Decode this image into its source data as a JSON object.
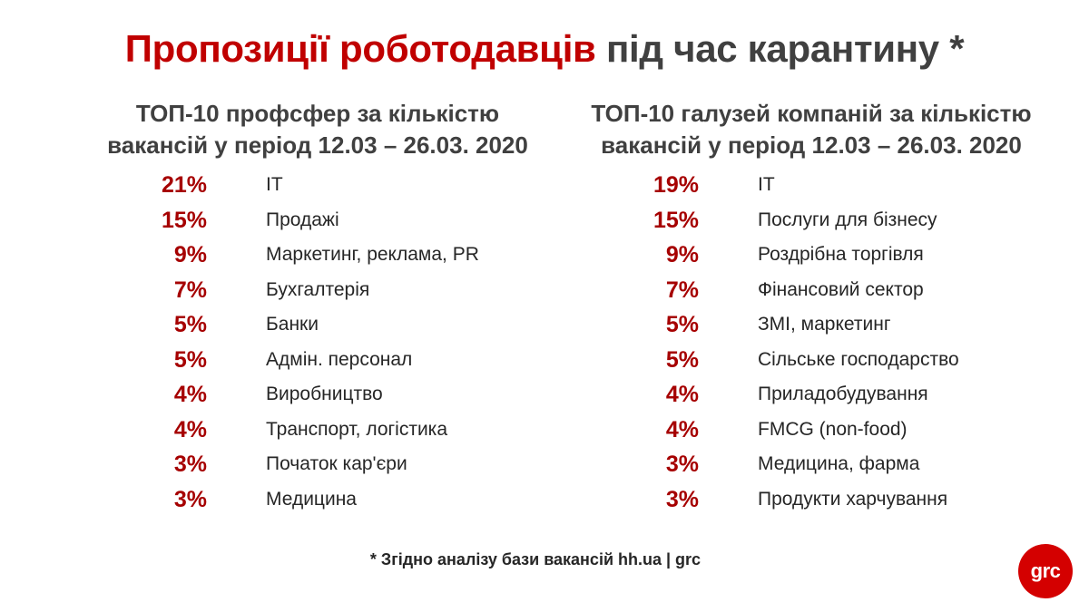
{
  "title": {
    "accent": "Пропозиції роботодавців",
    "rest": " під час карантину *"
  },
  "left_column": {
    "heading_line1": "ТОП-10 профсфер за кількістю",
    "heading_line2": "вакансій у період 12.03 – 26.03. 2020",
    "items": [
      {
        "pct": "21%",
        "label": "IT"
      },
      {
        "pct": "15%",
        "label": "Продажі"
      },
      {
        "pct": "9%",
        "label": "Маркетинг, реклама, PR"
      },
      {
        "pct": "7%",
        "label": "Бухгалтерія"
      },
      {
        "pct": "5%",
        "label": "Банки"
      },
      {
        "pct": "5%",
        "label": "Адмін. персонал"
      },
      {
        "pct": "4%",
        "label": "Виробництво"
      },
      {
        "pct": "4%",
        "label": "Транспорт, логістика"
      },
      {
        "pct": "3%",
        "label": "Початок кар'єри"
      },
      {
        "pct": "3%",
        "label": "Медицина"
      }
    ]
  },
  "right_column": {
    "heading_line1": "ТОП-10 галузей компаній за кількістю",
    "heading_line2": "вакансій у період 12.03 – 26.03. 2020",
    "items": [
      {
        "pct": "19%",
        "label": "IT"
      },
      {
        "pct": "15%",
        "label": "Послуги для бізнесу"
      },
      {
        "pct": "9%",
        "label": "Роздрібна торгівля"
      },
      {
        "pct": "7%",
        "label": "Фінансовий сектор"
      },
      {
        "pct": "5%",
        "label": "ЗМІ, маркетинг"
      },
      {
        "pct": "5%",
        "label": "Сільське господарство"
      },
      {
        "pct": "4%",
        "label": "Приладобудування"
      },
      {
        "pct": "4%",
        "label": "FMCG (non-food)"
      },
      {
        "pct": "3%",
        "label": "Медицина, фарма"
      },
      {
        "pct": "3%",
        "label": "Продукти харчування"
      }
    ]
  },
  "footnote": "* Згідно аналізу бази вакансій hh.ua | grc",
  "logo": {
    "text": "grc",
    "color": "#d40000"
  }
}
